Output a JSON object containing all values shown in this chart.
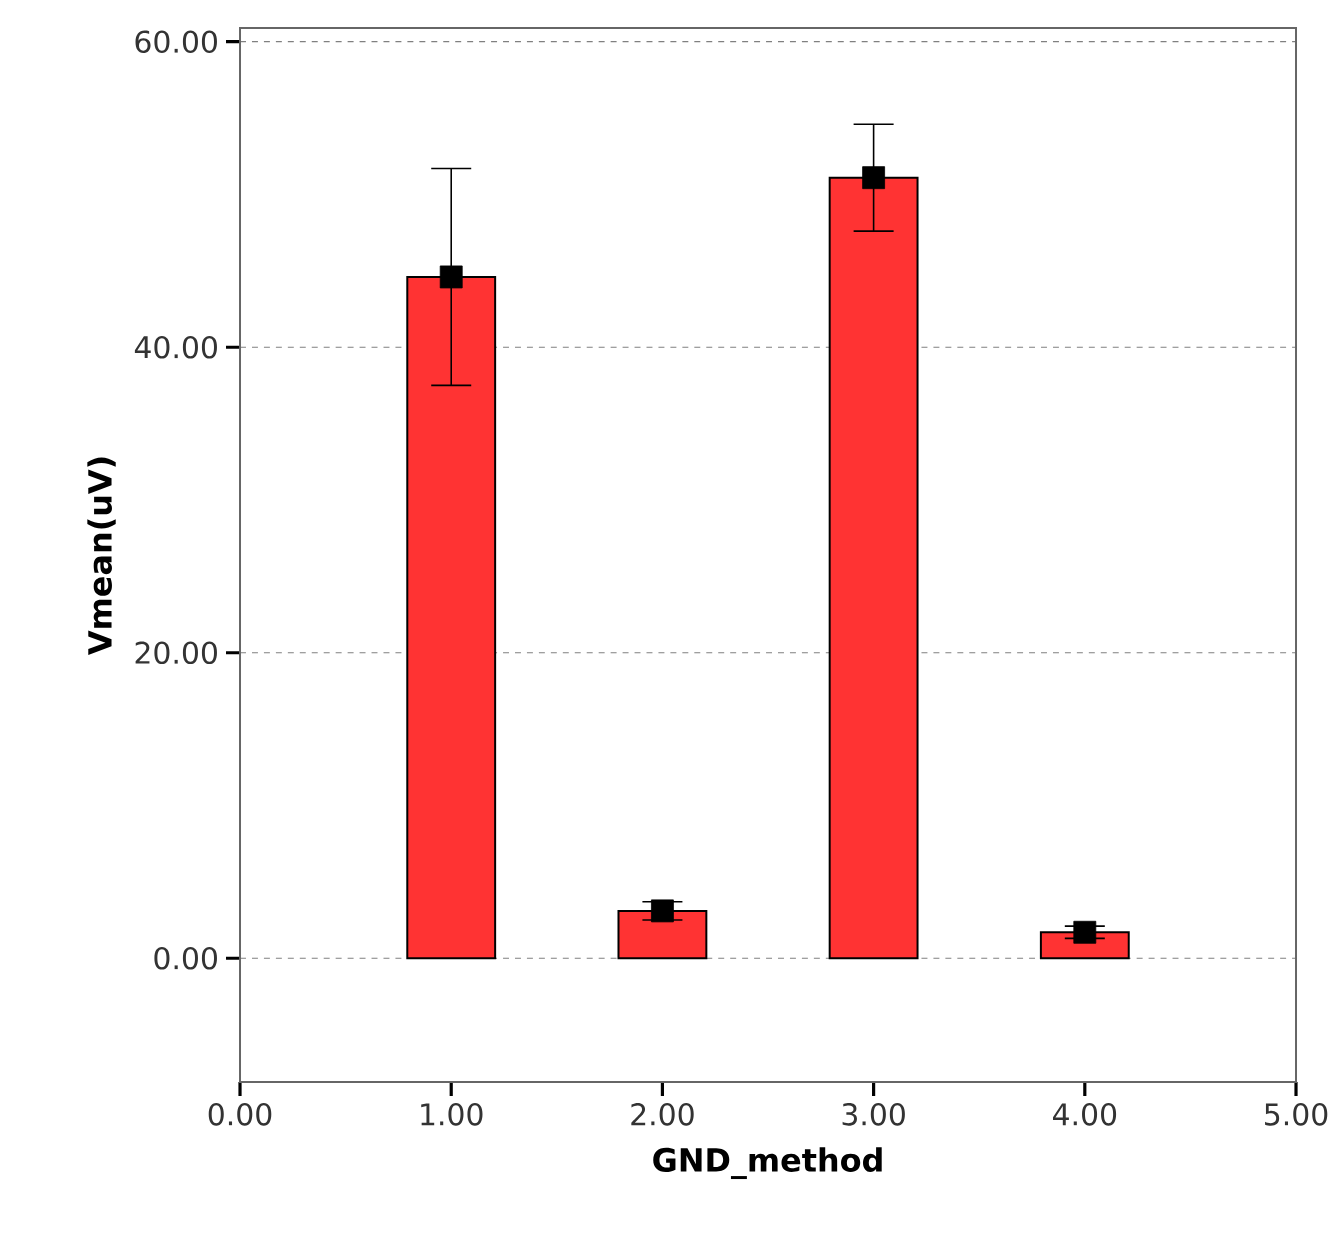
{
  "chart_data": {
    "type": "bar",
    "xlabel": "GND_method",
    "ylabel": "Vmean(uV)",
    "series": [
      {
        "x": [
          1,
          2,
          3,
          4
        ],
        "values": [
          44.6,
          3.1,
          51.1,
          1.7
        ],
        "color": "#ff3333"
      },
      {
        "type": "scatter",
        "x": [
          1,
          2,
          3,
          4
        ],
        "values": [
          44.6,
          3.1,
          51.1,
          1.7
        ],
        "errors": [
          7.1,
          0.6,
          3.5,
          0.4
        ],
        "color": "#000000",
        "marker": "square"
      }
    ],
    "xlim": [
      0,
      5
    ],
    "xticks": [
      {
        "value": 0,
        "label": "0.00"
      },
      {
        "value": 1,
        "label": "1.00"
      },
      {
        "value": 2,
        "label": "2.00"
      },
      {
        "value": 3,
        "label": "3.00"
      },
      {
        "value": 4,
        "label": "4.00"
      },
      {
        "value": 5,
        "label": "5.00"
      }
    ],
    "ylim": [
      -8.1,
      60.9
    ],
    "yticks": [
      {
        "value": 0,
        "label": "0.00"
      },
      {
        "value": 20,
        "label": "20.00"
      },
      {
        "value": 40,
        "label": "40.00"
      },
      {
        "value": 60,
        "label": "60.00"
      }
    ],
    "grid": "y"
  }
}
